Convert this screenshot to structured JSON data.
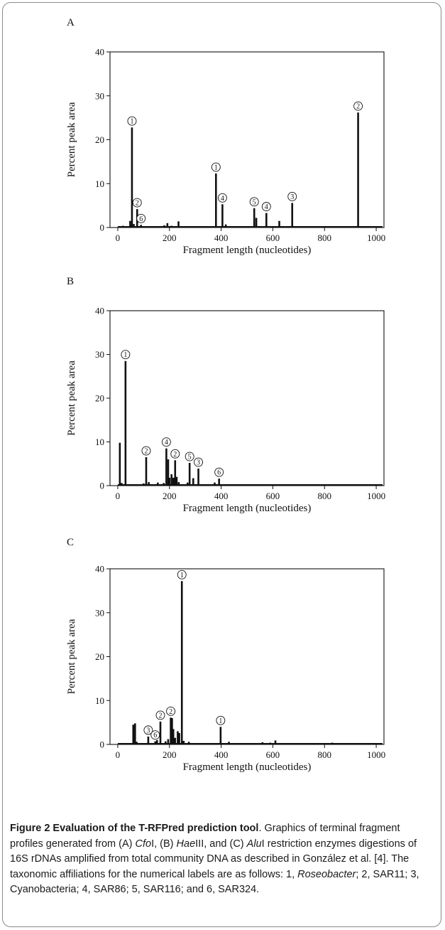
{
  "chart_data": [
    {
      "panel": "A",
      "type": "bar",
      "xlabel": "Fragment length (nucleotides)",
      "ylabel": "Percent peak area",
      "xlim": [
        -30,
        1030
      ],
      "ylim": [
        0,
        40
      ],
      "xticks": [
        0,
        200,
        400,
        600,
        800,
        1000
      ],
      "yticks": [
        0,
        10,
        20,
        30,
        40
      ],
      "peaks": [
        {
          "x": 20,
          "y": 0.4
        },
        {
          "x": 48,
          "y": 1.5
        },
        {
          "x": 55,
          "y": 22.8,
          "label": "1"
        },
        {
          "x": 62,
          "y": 0.8
        },
        {
          "x": 75,
          "y": 4.2,
          "label": "2"
        },
        {
          "x": 90,
          "y": 0.6,
          "label": "6"
        },
        {
          "x": 180,
          "y": 0.5
        },
        {
          "x": 192,
          "y": 1.0
        },
        {
          "x": 208,
          "y": 0.4
        },
        {
          "x": 235,
          "y": 1.4
        },
        {
          "x": 380,
          "y": 12.3,
          "label": "1"
        },
        {
          "x": 405,
          "y": 5.3,
          "label": "4"
        },
        {
          "x": 418,
          "y": 0.7
        },
        {
          "x": 528,
          "y": 4.4,
          "label": "5"
        },
        {
          "x": 536,
          "y": 2.2
        },
        {
          "x": 575,
          "y": 3.3,
          "label": "4"
        },
        {
          "x": 625,
          "y": 1.5
        },
        {
          "x": 675,
          "y": 5.6,
          "label": "3"
        },
        {
          "x": 930,
          "y": 26.2,
          "label": "2"
        }
      ]
    },
    {
      "panel": "B",
      "type": "bar",
      "xlabel": "Fragment length (nucleotides)",
      "ylabel": "Percent peak area",
      "xlim": [
        -30,
        1030
      ],
      "ylim": [
        0,
        40
      ],
      "xticks": [
        0,
        200,
        400,
        600,
        800,
        1000
      ],
      "yticks": [
        0,
        10,
        20,
        30,
        40
      ],
      "peaks": [
        {
          "x": 8,
          "y": 9.8
        },
        {
          "x": 15,
          "y": 0.6
        },
        {
          "x": 30,
          "y": 28.5,
          "label": "1"
        },
        {
          "x": 100,
          "y": 0.5
        },
        {
          "x": 110,
          "y": 6.5,
          "label": "2"
        },
        {
          "x": 120,
          "y": 0.8
        },
        {
          "x": 155,
          "y": 0.7
        },
        {
          "x": 178,
          "y": 0.6
        },
        {
          "x": 188,
          "y": 8.5,
          "label": "4"
        },
        {
          "x": 195,
          "y": 6.0
        },
        {
          "x": 200,
          "y": 1.8
        },
        {
          "x": 208,
          "y": 2.6
        },
        {
          "x": 215,
          "y": 1.8
        },
        {
          "x": 222,
          "y": 5.8,
          "label": "2"
        },
        {
          "x": 228,
          "y": 2.0
        },
        {
          "x": 236,
          "y": 0.8
        },
        {
          "x": 270,
          "y": 0.7
        },
        {
          "x": 278,
          "y": 5.2,
          "label": "5"
        },
        {
          "x": 292,
          "y": 1.7
        },
        {
          "x": 312,
          "y": 3.9,
          "label": "3"
        },
        {
          "x": 375,
          "y": 0.7
        },
        {
          "x": 392,
          "y": 1.6,
          "label": "6"
        },
        {
          "x": 635,
          "y": 0.2
        }
      ]
    },
    {
      "panel": "C",
      "type": "bar",
      "xlabel": "Fragment length (nucleotides)",
      "ylabel": "Percent peak area",
      "xlim": [
        -30,
        1030
      ],
      "ylim": [
        0,
        40
      ],
      "xticks": [
        0,
        200,
        400,
        600,
        800,
        1000
      ],
      "yticks": [
        0,
        10,
        20,
        30,
        40
      ],
      "peaks": [
        {
          "x": 15,
          "y": 0.3
        },
        {
          "x": 60,
          "y": 4.5
        },
        {
          "x": 67,
          "y": 4.8
        },
        {
          "x": 73,
          "y": 0.6
        },
        {
          "x": 118,
          "y": 1.8,
          "label": "3"
        },
        {
          "x": 145,
          "y": 0.7,
          "label": "6"
        },
        {
          "x": 152,
          "y": 1.0
        },
        {
          "x": 165,
          "y": 5.2,
          "label": "2"
        },
        {
          "x": 185,
          "y": 0.7
        },
        {
          "x": 195,
          "y": 1.2
        },
        {
          "x": 205,
          "y": 6.1,
          "label": "2"
        },
        {
          "x": 210,
          "y": 6.0
        },
        {
          "x": 215,
          "y": 3.5
        },
        {
          "x": 222,
          "y": 1.5
        },
        {
          "x": 232,
          "y": 3.0
        },
        {
          "x": 238,
          "y": 2.6
        },
        {
          "x": 248,
          "y": 37.2,
          "label": "1"
        },
        {
          "x": 255,
          "y": 0.8
        },
        {
          "x": 275,
          "y": 0.6
        },
        {
          "x": 398,
          "y": 4.0,
          "label": "1"
        },
        {
          "x": 430,
          "y": 0.6
        },
        {
          "x": 470,
          "y": 0.3
        },
        {
          "x": 560,
          "y": 0.5
        },
        {
          "x": 590,
          "y": 0.4
        },
        {
          "x": 610,
          "y": 0.9
        },
        {
          "x": 735,
          "y": 0.3
        },
        {
          "x": 830,
          "y": 0.4
        }
      ]
    }
  ],
  "caption": {
    "title": "Figure 2 Evaluation of the T-RFPred prediction tool",
    "segments": [
      {
        "text": ". Graphics of terminal fragment profiles generated from (A) ",
        "i": false
      },
      {
        "text": "Cfo",
        "i": true
      },
      {
        "text": "I, (B) ",
        "i": false
      },
      {
        "text": "Hae",
        "i": true
      },
      {
        "text": "III, and (C) ",
        "i": false
      },
      {
        "text": "Alu",
        "i": true
      },
      {
        "text": "I restriction enzymes digestions of 16S rDNAs amplified from total community DNA as described in González et al. [4]. The taxonomic affiliations for the numerical labels are as follows: 1, ",
        "i": false
      },
      {
        "text": "Roseobacter",
        "i": true
      },
      {
        "text": "; 2, SAR11; 3, Cyanobacteria; 4, SAR86; 5, SAR116; and 6, SAR324.",
        "i": false
      }
    ]
  }
}
